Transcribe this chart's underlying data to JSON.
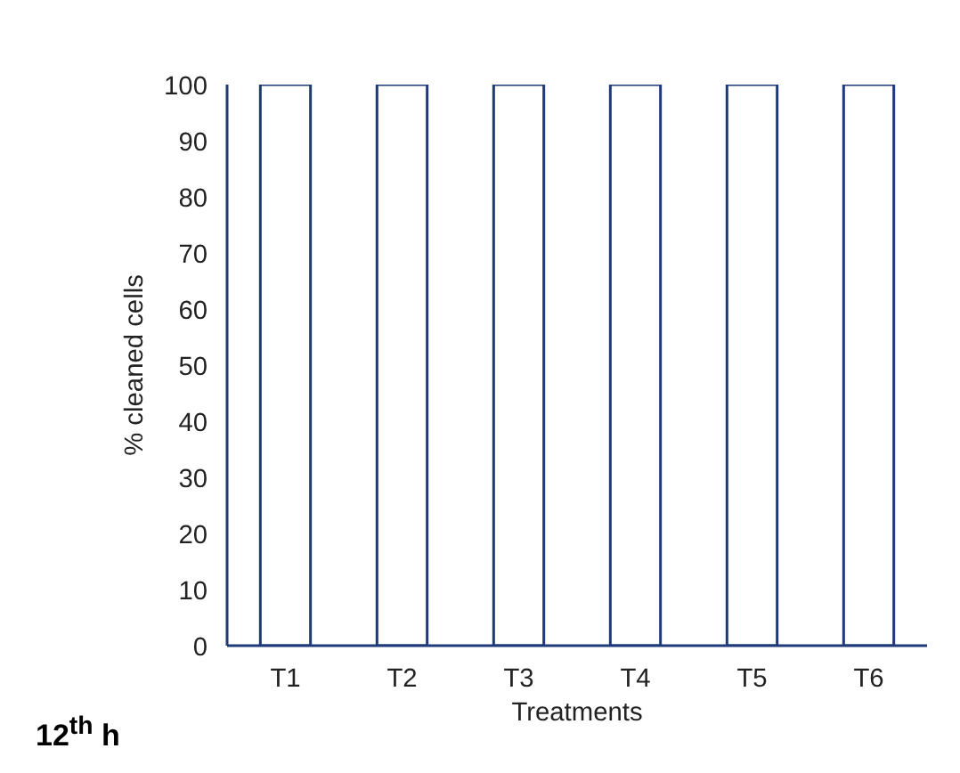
{
  "chart_data": {
    "type": "bar",
    "categories": [
      "T1",
      "T2",
      "T3",
      "T4",
      "T5",
      "T6"
    ],
    "values": [
      100,
      100,
      100,
      100,
      100,
      100
    ],
    "color": "#ffffff",
    "xlabel": "Treatments",
    "ylabel": "% cleaned cells",
    "ylim": [
      0,
      100
    ],
    "yticks": [
      0,
      10,
      20,
      30,
      40,
      50,
      60,
      70,
      80,
      90,
      100
    ],
    "grid": false,
    "annotations": [
      "12$^{th}$ h"
    ]
  }
}
